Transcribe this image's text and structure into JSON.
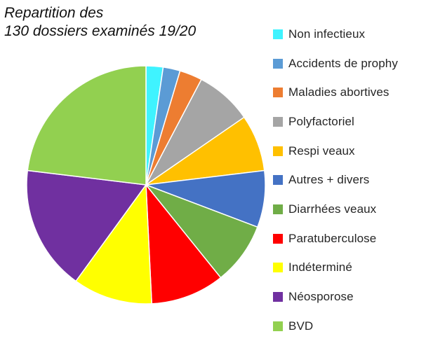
{
  "chart_data": {
    "type": "pie",
    "title_lines": [
      "Repartition des",
      "130 dossiers examinés 19/20"
    ],
    "legend_position": "right",
    "start_angle_deg": 0,
    "direction": "clockwise",
    "series": [
      {
        "name": "Non infectieux",
        "value": 3,
        "color": "#3FF3FF"
      },
      {
        "name": "Accidents de prophy",
        "value": 3,
        "color": "#5B9BD5"
      },
      {
        "name": "Maladies abortives",
        "value": 4,
        "color": "#ED7D31"
      },
      {
        "name": "Polyfactoriel",
        "value": 10,
        "color": "#A5A5A5"
      },
      {
        "name": "Respi veaux",
        "value": 10,
        "color": "#FFC000"
      },
      {
        "name": "Autres + divers",
        "value": 10,
        "color": "#4472C4"
      },
      {
        "name": "Diarrhées veaux",
        "value": 11,
        "color": "#70AD47"
      },
      {
        "name": "Paratuberculose",
        "value": 13,
        "color": "#FF0000"
      },
      {
        "name": "Indéterminé",
        "value": 14,
        "color": "#FFFF00"
      },
      {
        "name": "Néosporose",
        "value": 22,
        "color": "#7030A0"
      },
      {
        "name": "BVD",
        "value": 30,
        "color": "#92D050"
      }
    ]
  }
}
